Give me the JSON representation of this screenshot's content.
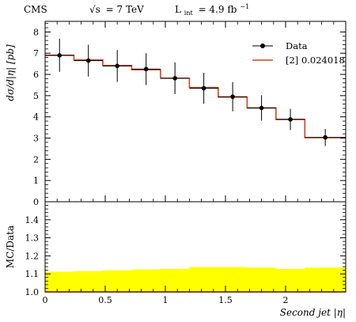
{
  "header": {
    "experiment": "CMS",
    "energy_lhs": "√s",
    "energy_rhs": "= 7 TeV",
    "lumi_base": "L",
    "lumi_sub": "int",
    "lumi_value": "= 4.9 fb",
    "lumi_exp": "−1"
  },
  "chart_data": [
    {
      "type": "line",
      "panel": "main",
      "ylabel": "dσ/d|η| [pb]",
      "ylim": [
        0,
        8.5
      ],
      "yticks": [
        0,
        1,
        2,
        3,
        4,
        5,
        6,
        7,
        8
      ],
      "xlim": [
        0,
        2.5
      ],
      "bin_edges": [
        0,
        0.24,
        0.48,
        0.72,
        0.96,
        1.2,
        1.44,
        1.68,
        1.92,
        2.16,
        2.5
      ],
      "series": [
        {
          "name": "Data",
          "kind": "points",
          "color": "#000000",
          "x": [
            0.12,
            0.36,
            0.6,
            0.84,
            1.08,
            1.32,
            1.56,
            1.8,
            2.04,
            2.33
          ],
          "y": [
            6.9,
            6.65,
            6.4,
            6.25,
            5.82,
            5.35,
            4.95,
            4.42,
            3.88,
            3.03
          ],
          "y_err": [
            0.78,
            0.75,
            0.75,
            0.75,
            0.75,
            0.73,
            0.69,
            0.6,
            0.5,
            0.4
          ]
        },
        {
          "name": "[2] 0.024018",
          "kind": "step",
          "color": "#d6431b",
          "values": [
            6.9,
            6.68,
            6.42,
            6.22,
            5.82,
            5.38,
            4.93,
            4.42,
            3.88,
            3.02
          ]
        }
      ],
      "legend": "top-right"
    },
    {
      "type": "area",
      "panel": "ratio",
      "ylabel": "MC/Data",
      "xlabel": "Second jet |η|",
      "ylim": [
        1.0,
        1.5
      ],
      "yticks": [
        1.0,
        1.1,
        1.2,
        1.3,
        1.4
      ],
      "xlim": [
        0,
        2.5
      ],
      "xticks": [
        0,
        0.5,
        1,
        1.5,
        2
      ],
      "bin_edges": [
        0,
        0.24,
        0.48,
        0.72,
        0.96,
        1.2,
        1.44,
        1.68,
        1.92,
        2.16,
        2.5
      ],
      "band_color": "#ffff00",
      "ratio_line_color": "#d6431b",
      "band_upper": [
        1.112,
        1.115,
        1.12,
        1.125,
        1.128,
        1.138,
        1.138,
        1.135,
        1.128,
        1.135
      ],
      "ratio": [
        1.0,
        1.0,
        1.0,
        1.0,
        1.0,
        1.0,
        1.0,
        1.0,
        1.0,
        1.0
      ]
    }
  ]
}
